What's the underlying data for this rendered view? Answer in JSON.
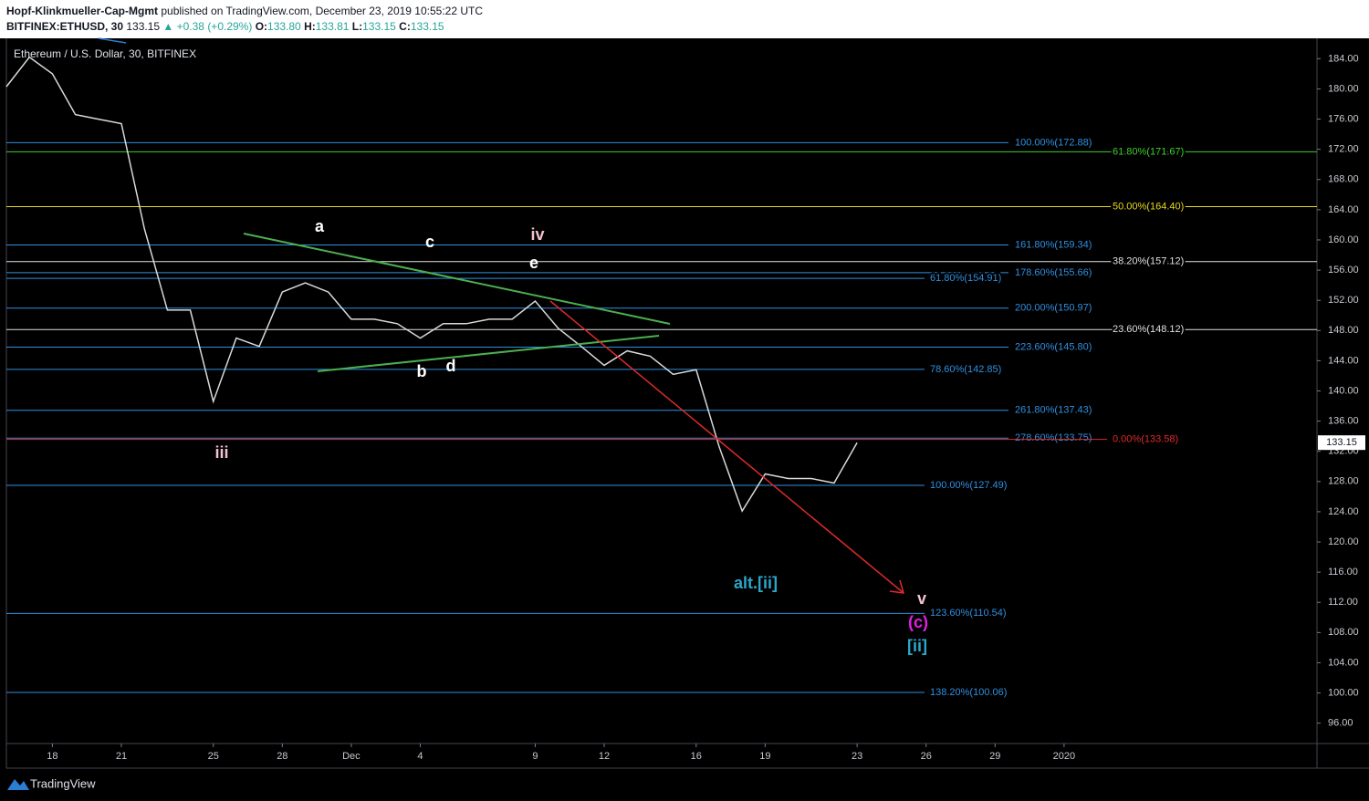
{
  "header": {
    "publisher": "Hopf-Klinkmueller-Cap-Mgmt",
    "published": "published on TradingView.com, December 23, 2019 10:55:22 UTC",
    "symbol": "BITFINEX:ETHUSD, 30",
    "price": "133.15",
    "change": "▲ +0.38 (+0.29%)",
    "open_label": "O:",
    "open": "133.80",
    "high_label": "H:",
    "high": "133.81",
    "low_label": "L:",
    "low": "133.15",
    "close_label": "C:",
    "close": "133.15"
  },
  "footer": "TradingView",
  "chart_data": {
    "type": "line",
    "legend": "Ethereum / U.S. Dollar, 30, BITFINEX",
    "color": "#d9d9d9",
    "x": [
      "2019-11-16",
      "2019-11-17",
      "2019-11-18",
      "2019-11-19",
      "2019-11-20",
      "2019-11-21",
      "2019-11-22",
      "2019-11-23",
      "2019-11-24",
      "2019-11-25",
      "2019-11-26",
      "2019-11-27",
      "2019-11-28",
      "2019-11-29",
      "2019-11-30",
      "2019-12-01",
      "2019-12-02",
      "2019-12-03",
      "2019-12-04",
      "2019-12-05",
      "2019-12-06",
      "2019-12-07",
      "2019-12-08",
      "2019-12-09",
      "2019-12-10",
      "2019-12-11",
      "2019-12-12",
      "2019-12-13",
      "2019-12-14",
      "2019-12-15",
      "2019-12-16",
      "2019-12-17",
      "2019-12-18",
      "2019-12-19",
      "2019-12-20",
      "2019-12-21",
      "2019-12-22",
      "2019-12-23"
    ],
    "values": [
      180.3,
      184.2,
      182,
      176.6,
      176,
      175.4,
      161.5,
      150.7,
      150.7,
      138.6,
      147,
      145.9,
      153.1,
      154.3,
      153.1,
      149.5,
      149.5,
      148.9,
      147,
      148.9,
      148.9,
      149.5,
      149.5,
      151.9,
      148.3,
      145.9,
      143.4,
      145.3,
      144.6,
      142.2,
      142.8,
      132.6,
      124.1,
      129,
      128.4,
      128.4,
      127.8,
      133.15
    ],
    "last_price": 133.15,
    "xlim": [
      "2019-11-16",
      "2020-01-12"
    ],
    "xticks": [
      {
        "value": "2019-11-18",
        "label": "18"
      },
      {
        "value": "2019-11-21",
        "label": "21"
      },
      {
        "value": "2019-11-25",
        "label": "25"
      },
      {
        "value": "2019-11-28",
        "label": "28"
      },
      {
        "value": "2019-12-01",
        "label": "Dec"
      },
      {
        "value": "2019-12-04",
        "label": "4"
      },
      {
        "value": "2019-12-09",
        "label": "9"
      },
      {
        "value": "2019-12-12",
        "label": "12"
      },
      {
        "value": "2019-12-16",
        "label": "16"
      },
      {
        "value": "2019-12-19",
        "label": "19"
      },
      {
        "value": "2019-12-23",
        "label": "23"
      },
      {
        "value": "2019-12-26",
        "label": "26"
      },
      {
        "value": "2019-12-29",
        "label": "29"
      },
      {
        "value": "2020-01-01",
        "label": "2020"
      }
    ],
    "ylim": [
      93.3,
      186.7
    ],
    "yticks": [
      {
        "value": 96,
        "label": "96.00"
      },
      {
        "value": 100,
        "label": "100.00"
      },
      {
        "value": 104,
        "label": "104.00"
      },
      {
        "value": 108,
        "label": "108.00"
      },
      {
        "value": 112,
        "label": "112.00"
      },
      {
        "value": 116,
        "label": "116.00"
      },
      {
        "value": 120,
        "label": "120.00"
      },
      {
        "value": 124,
        "label": "124.00"
      },
      {
        "value": 128,
        "label": "128.00"
      },
      {
        "value": 132,
        "label": "132.00"
      },
      {
        "value": 136,
        "label": "136.00"
      },
      {
        "value": 140,
        "label": "140.00"
      },
      {
        "value": 144,
        "label": "144.00"
      },
      {
        "value": 148,
        "label": "148.00"
      },
      {
        "value": 152,
        "label": "152.00"
      },
      {
        "value": 156,
        "label": "156.00"
      },
      {
        "value": 160,
        "label": "160.00"
      },
      {
        "value": 164,
        "label": "164.00"
      },
      {
        "value": 168,
        "label": "168.00"
      },
      {
        "value": 172,
        "label": "172.00"
      },
      {
        "value": 176,
        "label": "176.00"
      },
      {
        "value": 180,
        "label": "180.00"
      },
      {
        "value": 184,
        "label": "184.00"
      }
    ],
    "levels": [
      {
        "label": "100.00%(172.88)",
        "value": 172.88,
        "color": "#2f8fe0"
      },
      {
        "label": "61.80%(171.67)",
        "value": 171.67,
        "color": "#3fcf2f"
      },
      {
        "label": "50.00%(164.40)",
        "value": 164.4,
        "color": "#e8d81e"
      },
      {
        "label": "161.80%(159.34)",
        "value": 159.34,
        "color": "#2f8fe0"
      },
      {
        "label": "38.20%(157.12)",
        "value": 157.12,
        "color": "#e0e0e0"
      },
      {
        "label": "178.60%(155.66)",
        "value": 155.66,
        "color": "#2f8fe0"
      },
      {
        "label": "61.80%(154.91)",
        "value": 154.91,
        "color": "#2f8fe0"
      },
      {
        "label": "200.00%(150.97)",
        "value": 150.97,
        "color": "#2f8fe0"
      },
      {
        "label": "23.60%(148.12)",
        "value": 148.12,
        "color": "#e0e0e0"
      },
      {
        "label": "223.60%(145.80)",
        "value": 145.8,
        "color": "#2f8fe0"
      },
      {
        "label": "78.60%(142.85)",
        "value": 142.85,
        "color": "#2f8fe0"
      },
      {
        "label": "261.80%(137.43)",
        "value": 137.43,
        "color": "#2f8fe0"
      },
      {
        "label": "278.60%(133.75)",
        "value": 133.75,
        "color": "#2f8fe0"
      },
      {
        "label": "0.00%(133.58)",
        "value": 133.58,
        "color": "#e02a2a"
      },
      {
        "label": "100.00%(127.49)",
        "value": 127.49,
        "color": "#2f8fe0"
      },
      {
        "label": "123.60%(110.54)",
        "value": 110.54,
        "color": "#2f8fe0"
      },
      {
        "label": "138.20%(100.06)",
        "value": 100.06,
        "color": "#2f8fe0"
      }
    ],
    "annotations": [
      {
        "text": "a",
        "color": "#ffffff"
      },
      {
        "text": "b",
        "color": "#ffffff"
      },
      {
        "text": "c",
        "color": "#ffffff"
      },
      {
        "text": "d",
        "color": "#ffffff"
      },
      {
        "text": "e",
        "color": "#ffffff"
      },
      {
        "text": "iii",
        "color": "#f4c2d0"
      },
      {
        "text": "iv",
        "color": "#f4c2d0"
      },
      {
        "text": "v",
        "color": "#f4c2d0"
      },
      {
        "text": "(c)",
        "color": "#e020e0"
      },
      {
        "text": "[ii]",
        "color": "#2aa7c9"
      },
      {
        "text": "alt.[ii]",
        "color": "#2aa7c9"
      }
    ]
  }
}
